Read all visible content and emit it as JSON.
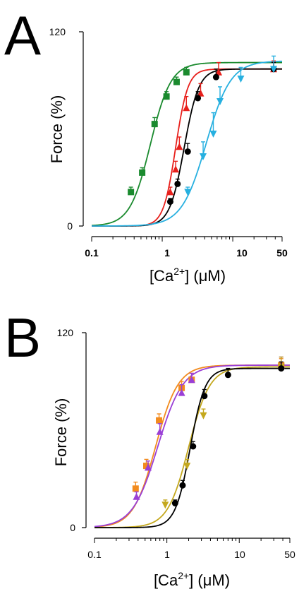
{
  "panels": [
    {
      "letter": "A",
      "chart_data": {
        "type": "line",
        "xlabel": "[Ca2+] (μM)",
        "ylabel": "Force (%)",
        "xscale": "log",
        "xlim": [
          0.1,
          50
        ],
        "ylim": [
          0,
          120
        ],
        "y_ticks": [
          "0",
          "120"
        ],
        "x_ticks": [
          "0.1",
          "1",
          "10",
          "50"
        ],
        "series": [
          {
            "color": "#1a8a2e",
            "marker": "square",
            "top": 101,
            "ec50": 0.68,
            "n": 3.0,
            "x": [
              0.36,
              0.52,
              0.78,
              1.15,
              1.6,
              2.2
            ],
            "y": [
              21,
              33,
              63,
              80,
              89,
              95
            ],
            "err": [
              3,
              3,
              4,
              3,
              3,
              3
            ]
          },
          {
            "color": "#e8201c",
            "marker": "triangle-up",
            "top": 97,
            "ec50": 1.55,
            "n": 5.0,
            "x": [
              1.3,
              1.55,
              1.75,
              2.2,
              3.5,
              6.3,
              38
            ],
            "y": [
              21,
              35,
              49,
              73,
              82,
              95,
              97
            ],
            "err": [
              3,
              5,
              6,
              7,
              6,
              6,
              5
            ]
          },
          {
            "color": "#000000",
            "marker": "circle",
            "top": 97,
            "ec50": 2.05,
            "n": 4.2,
            "x": [
              1.3,
              1.65,
              2.3,
              3.2,
              5.8,
              38
            ],
            "y": [
              15,
              26,
              46,
              79,
              92,
              97
            ],
            "err": [
              2,
              3,
              5,
              4,
              5,
              4
            ]
          },
          {
            "color": "#27b0e0",
            "marker": "triangle-down",
            "top": 102,
            "ec50": 4.2,
            "n": 2.5,
            "x": [
              2.3,
              3.8,
              5.3,
              6.6,
              13,
              38
            ],
            "y": [
              21,
              43,
              57,
              77,
              91,
              97
            ],
            "err": [
              3,
              9,
              13,
              9,
              7,
              8
            ]
          }
        ]
      }
    },
    {
      "letter": "B",
      "chart_data": {
        "type": "line",
        "xlabel": "[Ca2+] (μM)",
        "ylabel": "Force (%)",
        "xscale": "log",
        "xlim": [
          0.1,
          50
        ],
        "ylim": [
          0,
          120
        ],
        "y_ticks": [
          "0",
          "120"
        ],
        "x_ticks": [
          "0.1",
          "1",
          "10",
          "50"
        ],
        "series": [
          {
            "color": "#f28b1e",
            "marker": "square",
            "top": 100,
            "ec50": 0.7,
            "n": 2.8,
            "x": [
              0.37,
              0.52,
              0.78,
              1.6,
              2.2,
              38
            ],
            "y": [
              24,
              38,
              66,
              86,
              91,
              100
            ],
            "err": [
              4,
              4,
              4,
              4,
              4,
              4
            ]
          },
          {
            "color": "#9a3fd6",
            "marker": "triangle-up",
            "top": 100,
            "ec50": 0.75,
            "n": 2.5,
            "x": [
              0.38,
              0.55,
              0.8,
              1.6,
              2.2,
              38
            ],
            "y": [
              19,
              37,
              59,
              83,
              91,
              100
            ],
            "err": [
              3,
              4,
              5,
              5,
              4,
              5
            ]
          },
          {
            "color": "#c4a81e",
            "marker": "triangle-down",
            "top": 99,
            "ec50": 2.0,
            "n": 3.0,
            "x": [
              0.95,
              1.9,
              3.2,
              38
            ],
            "y": [
              14,
              38,
              69,
              99
            ],
            "err": [
              3,
              4,
              4,
              6
            ]
          },
          {
            "color": "#000000",
            "marker": "circle",
            "top": 98,
            "ec50": 2.1,
            "n": 4.2,
            "x": [
              1.3,
              1.65,
              2.3,
              3.3,
              7,
              38
            ],
            "y": [
              15,
              26,
              50,
              81,
              94,
              98
            ],
            "err": [
              2,
              3,
              3,
              4,
              4,
              4
            ]
          }
        ]
      }
    }
  ]
}
